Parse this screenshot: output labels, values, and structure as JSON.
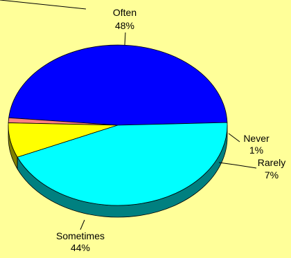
{
  "chart_data": {
    "type": "pie",
    "style": "3d",
    "categories": [
      "Often",
      "Never",
      "Rarely",
      "Sometimes"
    ],
    "values": [
      48,
      1,
      7,
      44
    ],
    "value_labels": [
      "48%",
      "1%",
      "7%",
      "44%"
    ],
    "colors": [
      "#0000ff",
      "#ff8080",
      "#ffff00",
      "#00ffff"
    ],
    "side_colors": [
      "#000080",
      "#804040",
      "#808000",
      "#008080"
    ],
    "background": "#ffff99"
  }
}
